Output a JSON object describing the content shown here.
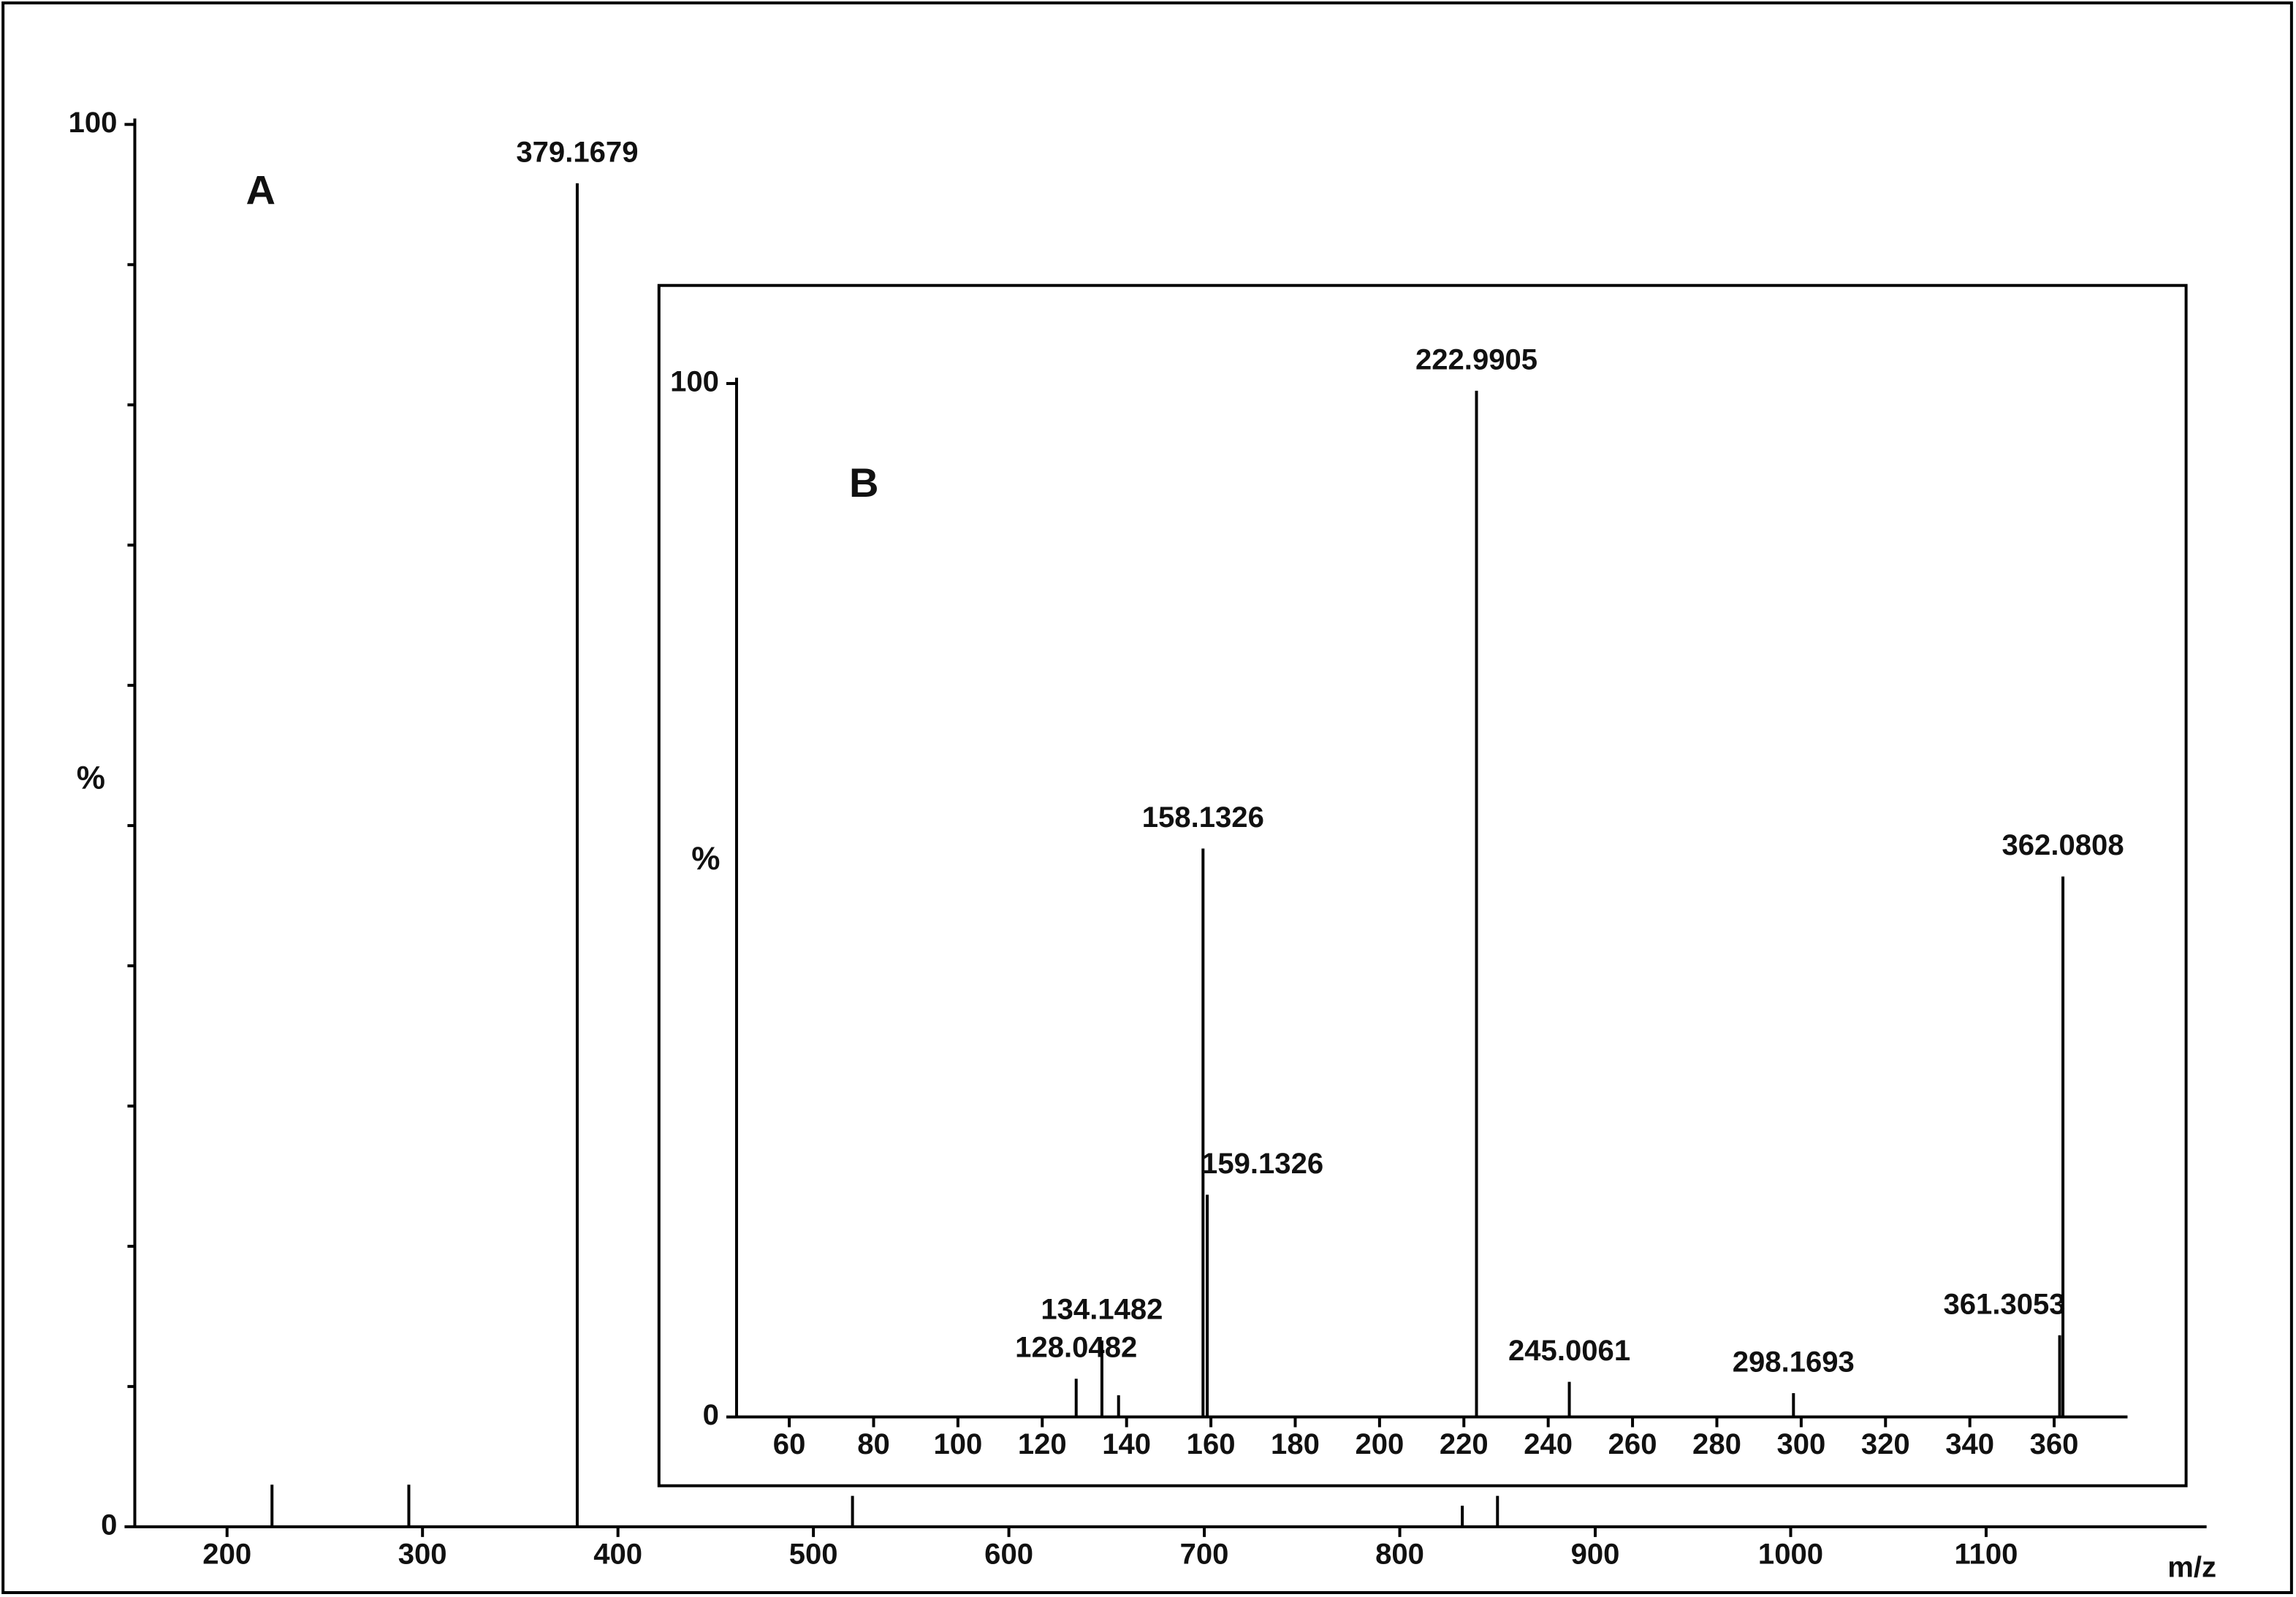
{
  "chart_data": [
    {
      "type": "stem",
      "panel_label": "A",
      "ylabel": "%",
      "xlabel": "m/z",
      "x": [
        223,
        293,
        379.1679,
        520,
        832,
        850
      ],
      "values": [
        3,
        3,
        95.8,
        2.2,
        1.5,
        2.2
      ],
      "peak_labels": [
        null,
        null,
        "379.1679",
        null,
        null,
        null
      ],
      "color": "#000000",
      "xlim": [
        152.8,
        1212.8
      ],
      "xticks": [
        200,
        300,
        400,
        500,
        600,
        700,
        800,
        900,
        1000,
        1100
      ],
      "ylim": [
        0,
        100
      ],
      "yticks": [
        0,
        100
      ],
      "yminorticks": [
        10,
        20,
        30,
        40,
        50,
        60,
        70,
        80,
        90
      ]
    },
    {
      "type": "stem",
      "panel_label": "B",
      "ylabel": "%",
      "x": [
        128.0482,
        134.1482,
        138.1,
        158.1326,
        159.1326,
        222.9905,
        245.0061,
        298.1693,
        361.3053,
        362.0808
      ],
      "values": [
        3.7,
        7.4,
        2.1,
        55,
        21.5,
        99.3,
        3.4,
        2.3,
        7.9,
        52.3
      ],
      "peak_labels": [
        "128.0482",
        "134.1482",
        null,
        "158.1326",
        "159.1326",
        "222.9905",
        "245.0061",
        "298.1693",
        "361.3053",
        "362.0808"
      ],
      "color": "#000000",
      "xlim": [
        47.5,
        377.4
      ],
      "xticks": [
        60,
        80,
        100,
        120,
        140,
        160,
        180,
        200,
        220,
        240,
        260,
        280,
        300,
        320,
        340,
        360
      ],
      "ylim": [
        0,
        100
      ],
      "yticks": [
        0,
        100
      ]
    }
  ]
}
